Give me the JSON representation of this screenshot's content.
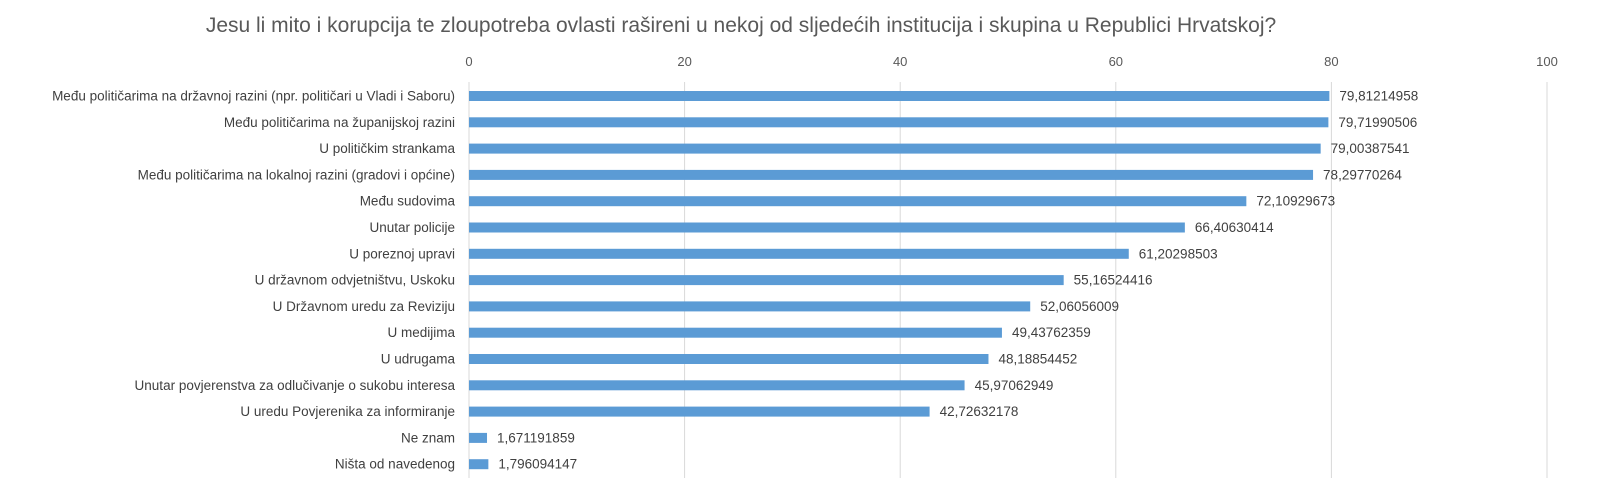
{
  "chart_data": {
    "type": "bar",
    "orientation": "horizontal",
    "title": "Jesu li mito i korupcija te zloupotreba ovlasti rašireni u nekoj od sljedećih institucija i skupina u Republici Hrvatskoj?",
    "categories": [
      "Među političarima na državnoj razini (npr. političari u Vladi i Saboru)",
      "Među političarima na županijskoj razini",
      "U političkim strankama",
      "Među političarima na lokalnoj razini (gradovi i općine)",
      "Među sudovima",
      "Unutar policije",
      "U poreznoj upravi",
      "U državnom odvjetništvu, Uskoku",
      "U Državnom uredu za Reviziju",
      "U medijima",
      "U udrugama",
      "Unutar povjerenstva za odlučivanje o sukobu interesa",
      "U uredu Povjerenika za informiranje",
      "Ne znam",
      "Ništa od navedenog"
    ],
    "values": [
      79.81214958,
      79.71990506,
      79.00387541,
      78.29770264,
      72.10929673,
      66.40630414,
      61.20298503,
      55.16524416,
      52.06056009,
      49.43762359,
      48.18854452,
      45.97062949,
      42.72632178,
      1.671191859,
      1.796094147
    ],
    "value_labels": [
      "79,81214958",
      "79,71990506",
      "79,00387541",
      "78,29770264",
      "72,10929673",
      "66,40630414",
      "61,20298503",
      "55,16524416",
      "52,06056009",
      "49,43762359",
      "48,18854452",
      "45,97062949",
      "42,72632178",
      "1,671191859",
      "1,796094147"
    ],
    "xlim": [
      0,
      100
    ],
    "x_ticks": [
      0,
      20,
      40,
      60,
      80,
      100
    ],
    "x_tick_labels": [
      "0",
      "20",
      "40",
      "60",
      "80",
      "100"
    ],
    "x_axis_position": "top",
    "grid": true,
    "bar_color": "#5b9bd5",
    "grid_color": "#d9d9d9"
  }
}
